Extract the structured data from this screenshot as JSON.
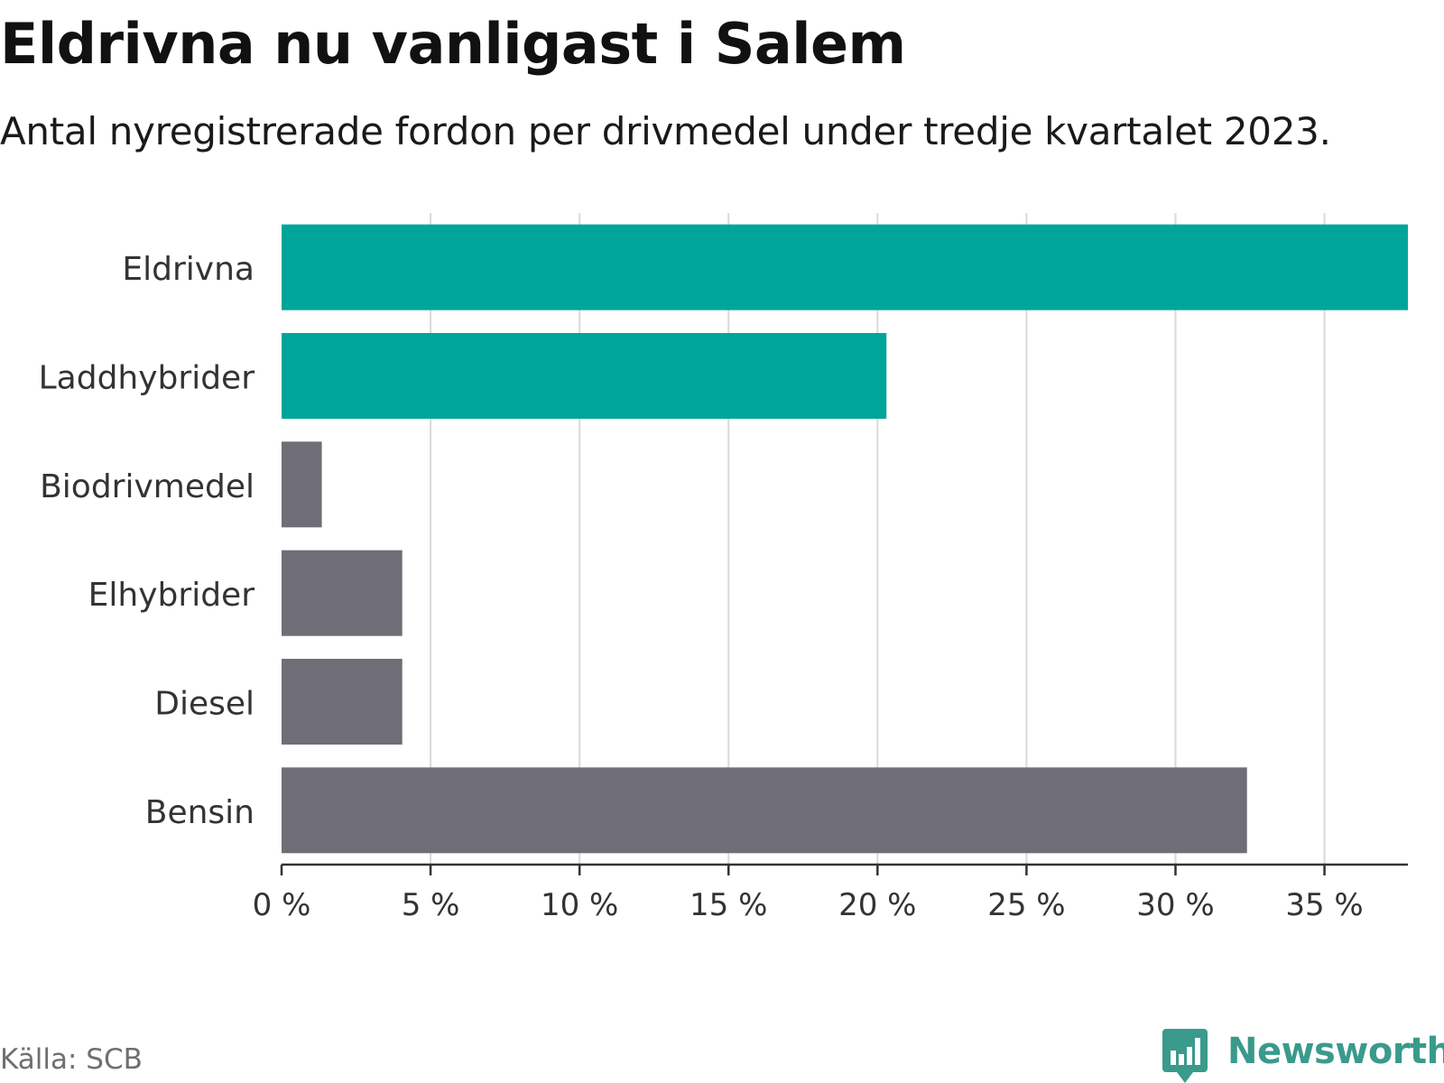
{
  "chart_data": {
    "type": "bar",
    "orientation": "horizontal",
    "title": "Eldrivna nu vanligast i Salem",
    "subtitle": "Antal nyregistrerade fordon per drivmedel under tredje kvartalet 2023.",
    "categories": [
      "Eldrivna",
      "Laddhybrider",
      "Biodrivmedel",
      "Elhybrider",
      "Diesel",
      "Bensin"
    ],
    "values": [
      37.8,
      20.3,
      1.35,
      4.05,
      4.05,
      32.4
    ],
    "bar_colors": [
      "#00a59a",
      "#00a59a",
      "#6f6e77",
      "#6f6e77",
      "#6f6e77",
      "#6f6e77"
    ],
    "xlabel": "",
    "ylabel": "",
    "xlim": [
      0,
      37.8
    ],
    "xticks": [
      0,
      5,
      10,
      15,
      20,
      25,
      30,
      35
    ],
    "xtick_labels": [
      "0 %",
      "5 %",
      "10 %",
      "15 %",
      "20 %",
      "25 %",
      "30 %",
      "35 %"
    ],
    "grid": true,
    "legend": "none"
  },
  "source": "Källa: SCB",
  "logo": {
    "text": "Newsworthy",
    "color": "#3a9a8c",
    "icon": "newsworthy-logo-icon"
  },
  "colors": {
    "grid": "#d9d9d9",
    "axis": "#333333",
    "tick_text": "#333333",
    "category_text": "#333333"
  }
}
